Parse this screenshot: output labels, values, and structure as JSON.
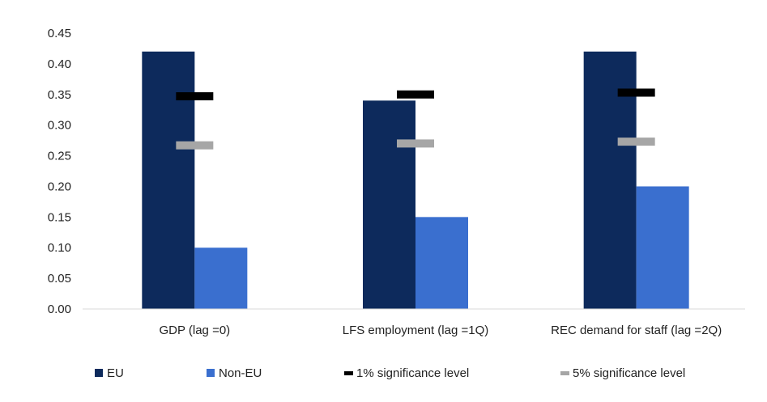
{
  "chart_data": {
    "type": "bar",
    "categories": [
      "GDP (lag =0)",
      "LFS employment (lag =1Q)",
      "REC demand for staff (lag =2Q)"
    ],
    "series": [
      {
        "name": "EU",
        "color": "#0d2a5c",
        "values": [
          0.42,
          0.34,
          0.42
        ]
      },
      {
        "name": "Non-EU",
        "color": "#3a6fcf",
        "values": [
          0.1,
          0.15,
          0.2
        ]
      }
    ],
    "markers": [
      {
        "name": "1% significance level",
        "color": "#000000",
        "values": [
          0.347,
          0.35,
          0.353
        ]
      },
      {
        "name": "5% significance level",
        "color": "#a6a6a6",
        "values": [
          0.267,
          0.27,
          0.273
        ]
      }
    ],
    "yticks": [
      "0.00",
      "0.05",
      "0.10",
      "0.15",
      "0.20",
      "0.25",
      "0.30",
      "0.35",
      "0.40",
      "0.45"
    ],
    "ylim": [
      0,
      0.45
    ],
    "grid": false,
    "legend_position": "bottom",
    "title": "",
    "xlabel": "",
    "ylabel": ""
  }
}
